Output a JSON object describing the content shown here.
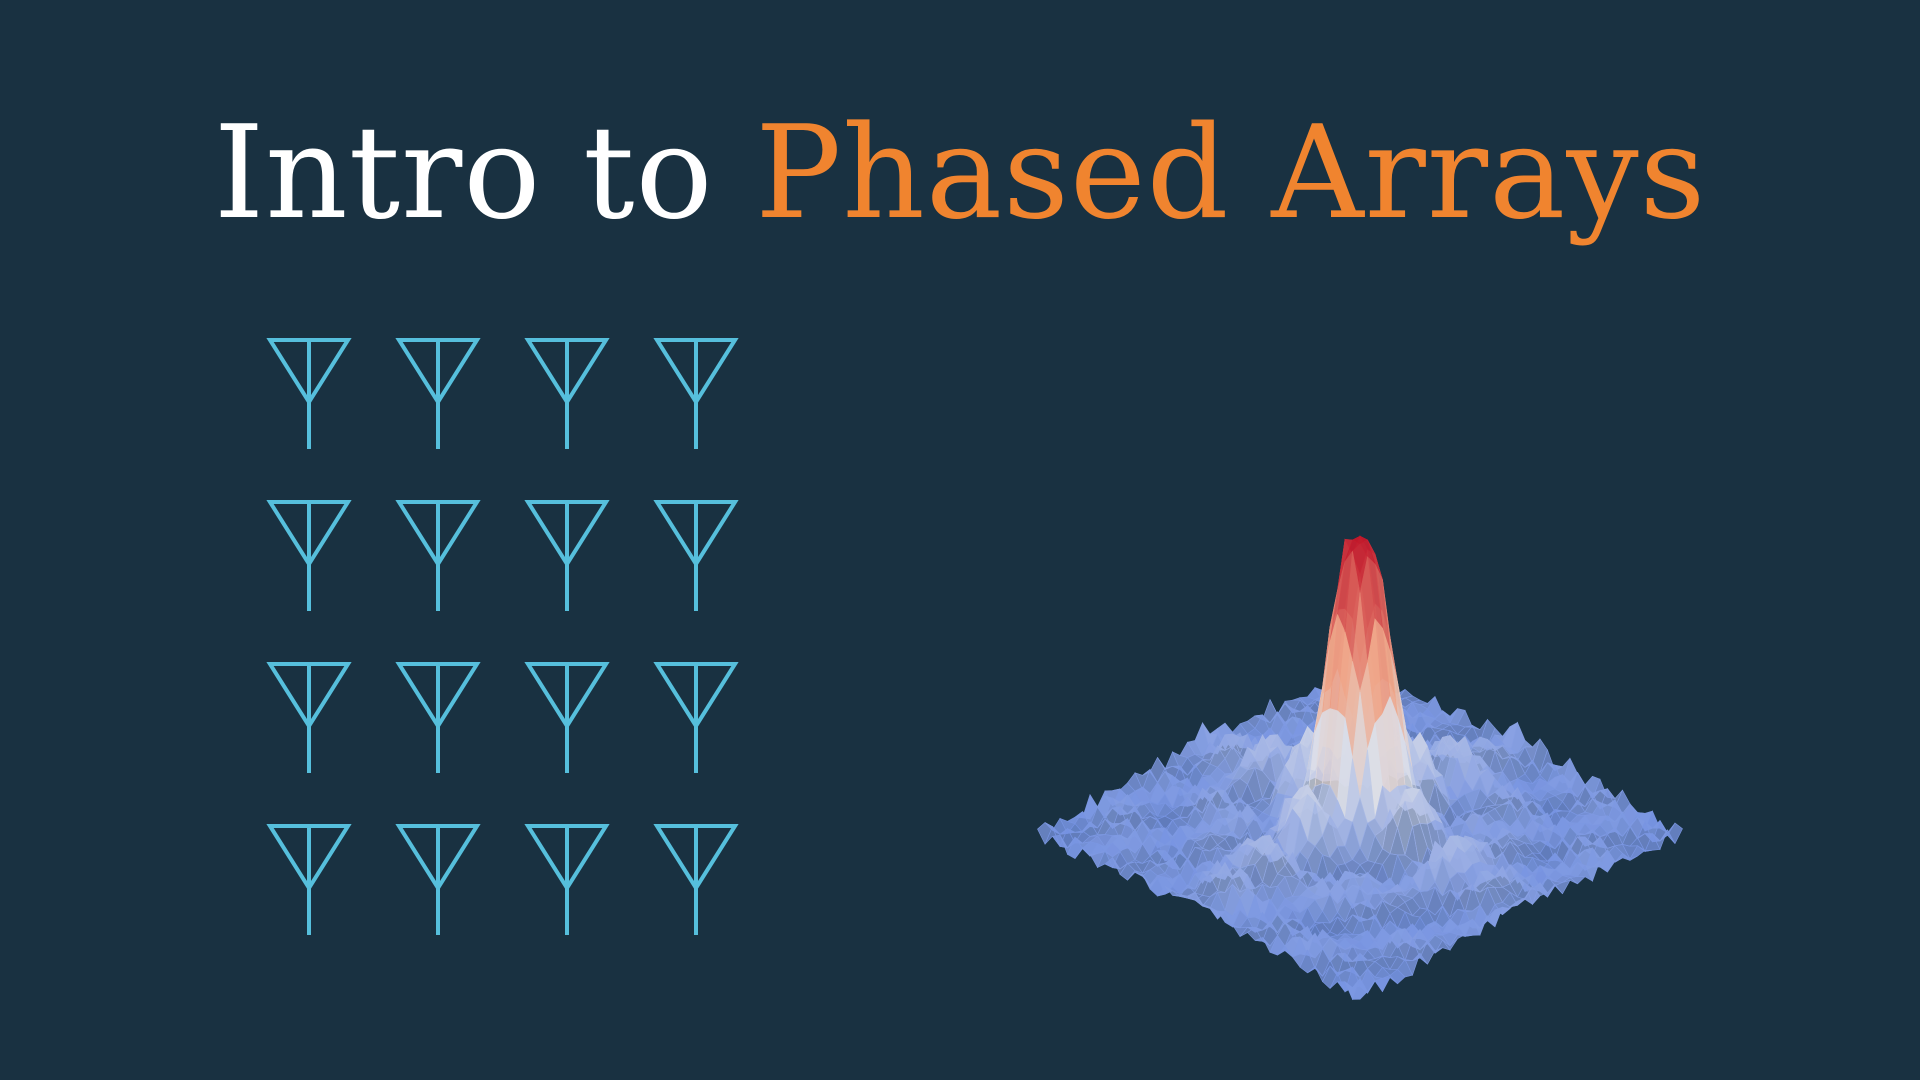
{
  "title": {
    "part1": "Intro to",
    "part2": "Phased Arrays"
  },
  "colors": {
    "background": "#193141",
    "title_primary": "#ffffff",
    "title_accent": "#f0842f",
    "antenna": "#56bfdc",
    "surface_low": "#5b7fe0",
    "surface_mid": "#dcdfe8",
    "surface_high": "#c4172a"
  },
  "antenna_array": {
    "rows": 4,
    "cols": 4,
    "icon": "antenna-icon"
  },
  "surface_plot": {
    "icon": "radiation-pattern-surface"
  }
}
